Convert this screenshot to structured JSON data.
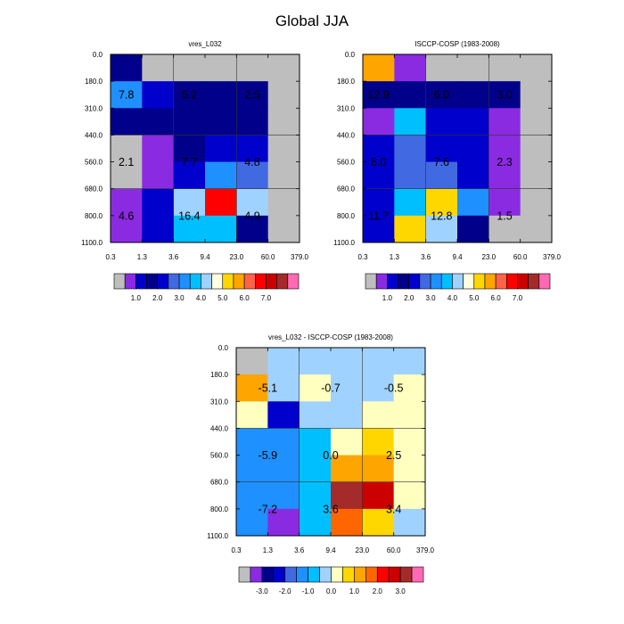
{
  "figure_title": "Global JJA",
  "colors": {
    "missing": "#bebebe",
    "seq_palette": [
      "#8a2be2",
      "#0000cd",
      "#00008b",
      "#0000cd",
      "#4169e1",
      "#1e90ff",
      "#00bfff",
      "#a0d2ff",
      "#ffffe0",
      "#ffd700",
      "#ffa500",
      "#ff6347",
      "#ff0000",
      "#cd0000",
      "#a52a2a",
      "#ff69b4"
    ],
    "diff_palette": [
      "#8a2be2",
      "#00008b",
      "#0000cd",
      "#4169e1",
      "#1e90ff",
      "#00bfff",
      "#a0d2ff",
      "#ffffc0",
      "#ffd700",
      "#ffa500",
      "#ff6600",
      "#ff0000",
      "#cd0000",
      "#a52a2a",
      "#ff69b4"
    ]
  },
  "chart_data": [
    {
      "type": "heatmap",
      "title": "vres_L032",
      "x_tick_labels": [
        "0.3",
        "1.3",
        "3.6",
        "9.4",
        "23.0",
        "60.0",
        "379.0"
      ],
      "y_tick_labels": [
        "0.0",
        "180.0",
        "310.0",
        "440.0",
        "560.0",
        "680.0",
        "800.0",
        "1100.0"
      ],
      "cell_colors": [
        [
          "#00008b",
          "#bebebe",
          "#bebebe",
          "#bebebe",
          "#bebebe",
          "#bebebe"
        ],
        [
          "#1e90ff",
          "#0000cd",
          "#00008b",
          "#00008b",
          "#00008b",
          "#bebebe"
        ],
        [
          "#00008b",
          "#00008b",
          "#00008b",
          "#00008b",
          "#00008b",
          "#bebebe"
        ],
        [
          "#bebebe",
          "#8a2be2",
          "#00008b",
          "#0000cd",
          "#0000cd",
          "#bebebe"
        ],
        [
          "#bebebe",
          "#8a2be2",
          "#0000cd",
          "#1e90ff",
          "#4169e1",
          "#bebebe"
        ],
        [
          "#8a2be2",
          "#0000cd",
          "#a0d2ff",
          "#ff0000",
          "#a0d2ff",
          "#bebebe"
        ],
        [
          "#8a2be2",
          "#0000cd",
          "#00bfff",
          "#00bfff",
          "#00008b",
          "#bebebe"
        ]
      ],
      "annotations": [
        {
          "text": "7.8",
          "col": 0.5,
          "row": 1.5
        },
        {
          "text": "5.2",
          "col": 2.5,
          "row": 1.5
        },
        {
          "text": "2.5",
          "col": 4.5,
          "row": 1.5
        },
        {
          "text": "2.1",
          "col": 0.5,
          "row": 4.0
        },
        {
          "text": "7.7",
          "col": 2.5,
          "row": 4.0
        },
        {
          "text": "4.8",
          "col": 4.5,
          "row": 4.0
        },
        {
          "text": "4.6",
          "col": 0.5,
          "row": 6.0
        },
        {
          "text": "16.4",
          "col": 2.5,
          "row": 6.0
        },
        {
          "text": "4.9",
          "col": 4.5,
          "row": 6.0
        }
      ]
    },
    {
      "type": "heatmap",
      "title": "ISCCP-COSP (1983-2008)",
      "x_tick_labels": [
        "0.3",
        "1.3",
        "3.6",
        "9.4",
        "23.0",
        "60.0",
        "379.0"
      ],
      "y_tick_labels": [
        "0.0",
        "180.0",
        "310.0",
        "440.0",
        "560.0",
        "680.0",
        "800.0",
        "1100.0"
      ],
      "cell_colors": [
        [
          "#ffa500",
          "#8a2be2",
          "#bebebe",
          "#bebebe",
          "#bebebe",
          "#bebebe"
        ],
        [
          "#00008b",
          "#00008b",
          "#00008b",
          "#00008b",
          "#00008b",
          "#bebebe"
        ],
        [
          "#8a2be2",
          "#00bfff",
          "#0000cd",
          "#0000cd",
          "#8a2be2",
          "#bebebe"
        ],
        [
          "#0000cd",
          "#4169e1",
          "#0000cd",
          "#0000cd",
          "#8a2be2",
          "#bebebe"
        ],
        [
          "#0000cd",
          "#4169e1",
          "#4169e1",
          "#0000cd",
          "#8a2be2",
          "#bebebe"
        ],
        [
          "#0000cd",
          "#00bfff",
          "#ffd700",
          "#1e90ff",
          "#8a2be2",
          "#bebebe"
        ],
        [
          "#0000cd",
          "#ffd700",
          "#a0d2ff",
          "#00008b",
          "#bebebe",
          "#bebebe"
        ]
      ],
      "annotations": [
        {
          "text": "12.9",
          "col": 0.5,
          "row": 1.5
        },
        {
          "text": "6.0",
          "col": 2.5,
          "row": 1.5
        },
        {
          "text": "3.0",
          "col": 4.5,
          "row": 1.5
        },
        {
          "text": "8.0",
          "col": 0.5,
          "row": 4.0
        },
        {
          "text": "7.6",
          "col": 2.5,
          "row": 4.0
        },
        {
          "text": "2.3",
          "col": 4.5,
          "row": 4.0
        },
        {
          "text": "11.7",
          "col": 0.5,
          "row": 6.0
        },
        {
          "text": "12.8",
          "col": 2.5,
          "row": 6.0
        },
        {
          "text": "1.5",
          "col": 4.5,
          "row": 6.0
        }
      ]
    },
    {
      "type": "heatmap",
      "title": "vres_L032 - ISCCP-COSP (1983-2008)",
      "x_tick_labels": [
        "0.3",
        "1.3",
        "3.6",
        "9.4",
        "23.0",
        "60.0",
        "379.0"
      ],
      "y_tick_labels": [
        "0.0",
        "180.0",
        "310.0",
        "440.0",
        "560.0",
        "680.0",
        "800.0",
        "1100.0"
      ],
      "cell_colors": [
        [
          "#bebebe",
          "#a0d2ff",
          "#a0d2ff",
          "#a0d2ff",
          "#a0d2ff",
          "#a0d2ff"
        ],
        [
          "#ffa500",
          "#a0d2ff",
          "#ffffc0",
          "#a0d2ff",
          "#a0d2ff",
          "#ffffc0"
        ],
        [
          "#ffffc0",
          "#0000cd",
          "#a0d2ff",
          "#a0d2ff",
          "#ffffc0",
          "#ffffc0"
        ],
        [
          "#1e90ff",
          "#1e90ff",
          "#00bfff",
          "#ffffc0",
          "#ffd700",
          "#ffffc0"
        ],
        [
          "#1e90ff",
          "#1e90ff",
          "#00bfff",
          "#ffa500",
          "#ffa500",
          "#ffffc0"
        ],
        [
          "#1e90ff",
          "#1e90ff",
          "#00bfff",
          "#a52a2a",
          "#cd0000",
          "#ffffc0"
        ],
        [
          "#1e90ff",
          "#8a2be2",
          "#00bfff",
          "#ff6600",
          "#ffd700",
          "#a0d2ff"
        ]
      ],
      "annotations": [
        {
          "text": "-5.1",
          "col": 1.0,
          "row": 1.5
        },
        {
          "text": "-0.7",
          "col": 3.0,
          "row": 1.5
        },
        {
          "text": "-0.5",
          "col": 5.0,
          "row": 1.5
        },
        {
          "text": "-5.9",
          "col": 1.0,
          "row": 4.0
        },
        {
          "text": "0.0",
          "col": 3.0,
          "row": 4.0
        },
        {
          "text": "2.5",
          "col": 5.0,
          "row": 4.0
        },
        {
          "text": "-7.2",
          "col": 1.0,
          "row": 6.0
        },
        {
          "text": "3.6",
          "col": 3.0,
          "row": 6.0
        },
        {
          "text": "3.4",
          "col": 5.0,
          "row": 6.0
        }
      ]
    }
  ],
  "colorbars": [
    {
      "palette": "seq",
      "tick_labels": [
        "1.0",
        "2.0",
        "3.0",
        "4.0",
        "5.0",
        "6.0",
        "7.0"
      ],
      "tick_box_index": [
        1,
        3,
        5,
        7,
        9,
        11,
        13
      ]
    },
    {
      "palette": "seq",
      "tick_labels": [
        "1.0",
        "2.0",
        "3.0",
        "4.0",
        "5.0",
        "6.0",
        "7.0"
      ],
      "tick_box_index": [
        1,
        3,
        5,
        7,
        9,
        11,
        13
      ]
    },
    {
      "palette": "diff",
      "tick_labels": [
        "-3.0",
        "-2.0",
        "-1.0",
        "0.0",
        "1.0",
        "2.0",
        "3.0"
      ],
      "tick_box_index": [
        1,
        3,
        5,
        7,
        9,
        11,
        13
      ]
    }
  ]
}
